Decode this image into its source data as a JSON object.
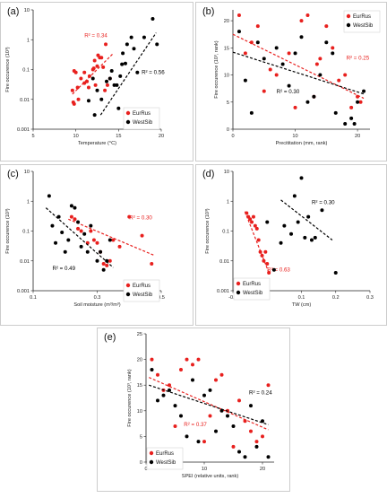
{
  "colors": {
    "EurRus": "#e8201e",
    "WestSib": "#000000"
  },
  "chart_data": [
    {
      "panel": "(a)",
      "type": "scatter",
      "xlabel": "Temperature (°C)",
      "ylabel": "Fire occurence (10³)",
      "xscale": "linear",
      "yscale": "log",
      "xlim": [
        5,
        20
      ],
      "ylim": [
        0.001,
        10
      ],
      "xticks": [
        "5",
        "10",
        "15",
        "20"
      ],
      "yticks": [
        "0.001",
        "0.01",
        "0.1",
        "1",
        "10"
      ],
      "legend": {
        "position": "bottom-right",
        "entries": [
          "EurRus",
          "WestSib"
        ]
      },
      "series": [
        {
          "name": "EurRus",
          "color": "#e8201e",
          "points": [
            [
              9.6,
              0.02
            ],
            [
              9.7,
              0.008
            ],
            [
              9.8,
              0.007
            ],
            [
              9.8,
              0.09
            ],
            [
              10,
              0.08
            ],
            [
              10.2,
              0.025
            ],
            [
              10.3,
              0.01
            ],
            [
              10.6,
              0.05
            ],
            [
              11,
              0.035
            ],
            [
              11,
              0.08
            ],
            [
              11.3,
              0.04
            ],
            [
              11.5,
              0.025
            ],
            [
              11.6,
              0.06
            ],
            [
              12,
              0.1
            ],
            [
              12.1,
              0.11
            ],
            [
              12.2,
              0.2
            ],
            [
              12.3,
              0.03
            ],
            [
              12.5,
              0.13
            ],
            [
              12.6,
              0.3
            ],
            [
              12.8,
              0.25
            ],
            [
              13,
              0.25
            ],
            [
              13.2,
              0.12
            ],
            [
              13.4,
              0.02
            ],
            [
              13.5,
              0.7
            ],
            [
              13.7,
              0.03
            ],
            [
              14,
              0.05
            ]
          ],
          "fit": [
            [
              9.6,
              0.015
            ],
            [
              14.3,
              0.33
            ]
          ],
          "r2_label": "R² = 0.34"
        },
        {
          "name": "WestSib",
          "color": "#000000",
          "points": [
            [
              11.5,
              0.009
            ],
            [
              12,
              0.05
            ],
            [
              12.2,
              0.003
            ],
            [
              12.5,
              0.02
            ],
            [
              13,
              0.01
            ],
            [
              13.6,
              0.04
            ],
            [
              14,
              0.05
            ],
            [
              14.2,
              0.09
            ],
            [
              14.5,
              0.03
            ],
            [
              14.8,
              0.03
            ],
            [
              15,
              0.005
            ],
            [
              15.2,
              0.06
            ],
            [
              15.4,
              0.15
            ],
            [
              15.5,
              0.35
            ],
            [
              15.8,
              0.16
            ],
            [
              16,
              0.7
            ],
            [
              16.5,
              1.2
            ],
            [
              16.8,
              0.5
            ],
            [
              17.2,
              0.08
            ],
            [
              17.5,
              0.003
            ],
            [
              18,
              1.2
            ],
            [
              19,
              5
            ],
            [
              19.5,
              0.7
            ]
          ],
          "fit": [
            [
              12.9,
              0.003
            ],
            [
              19.4,
              1.7
            ]
          ],
          "r2_label": "R² = 0.56"
        }
      ]
    },
    {
      "panel": "(b)",
      "type": "scatter",
      "xlabel": "Precititation (mm, rank)",
      "ylabel": "Fire occurence (10³, rank)",
      "xscale": "linear",
      "yscale": "linear",
      "xlim": [
        0,
        22
      ],
      "ylim": [
        0,
        22
      ],
      "xticks": [
        "0",
        "10",
        "20"
      ],
      "yticks": [
        "0",
        "5",
        "10",
        "15",
        "20"
      ],
      "legend": {
        "position": "top-right",
        "entries": [
          "EurRus",
          "WestSib"
        ]
      },
      "series": [
        {
          "name": "EurRus",
          "color": "#e8201e",
          "points": [
            [
              1,
              21
            ],
            [
              2,
              14
            ],
            [
              3,
              16
            ],
            [
              4,
              19
            ],
            [
              5,
              7
            ],
            [
              6,
              11
            ],
            [
              7,
              10
            ],
            [
              9,
              14
            ],
            [
              10,
              4
            ],
            [
              11,
              20
            ],
            [
              12,
              21
            ],
            [
              13,
              6
            ],
            [
              13.5,
              12
            ],
            [
              14,
              13
            ],
            [
              15,
              19
            ],
            [
              16,
              15
            ],
            [
              17,
              9
            ],
            [
              18,
              10
            ],
            [
              19,
              4
            ],
            [
              20,
              6
            ],
            [
              20.5,
              5
            ]
          ],
          "fit": [
            [
              0,
              17.5
            ],
            [
              21,
              5.7
            ]
          ],
          "r2_label": "R² = 0.25"
        },
        {
          "name": "WestSib",
          "color": "#000000",
          "points": [
            [
              1,
              18
            ],
            [
              2,
              9
            ],
            [
              3,
              3
            ],
            [
              4,
              16
            ],
            [
              5,
              13
            ],
            [
              7,
              15
            ],
            [
              8,
              12
            ],
            [
              9,
              8
            ],
            [
              10,
              14
            ],
            [
              11,
              17
            ],
            [
              12,
              5
            ],
            [
              13,
              6
            ],
            [
              14,
              10
            ],
            [
              15,
              16
            ],
            [
              16,
              14
            ],
            [
              16.5,
              3
            ],
            [
              18,
              1
            ],
            [
              19,
              2
            ],
            [
              19.5,
              1
            ],
            [
              20,
              5
            ],
            [
              21,
              7
            ]
          ],
          "fit": [
            [
              0,
              14.2
            ],
            [
              21,
              6.5
            ]
          ],
          "r2_label": "R² = 0.30"
        }
      ]
    },
    {
      "panel": "(c)",
      "type": "scatter",
      "xlabel": "Soil moisture (m³/m³)",
      "ylabel": "Fire occurence (10³)",
      "xscale": "linear",
      "yscale": "log",
      "xlim": [
        0.1,
        0.5
      ],
      "ylim": [
        0.001,
        10
      ],
      "xticks": [
        "0.1",
        "0.3",
        "0.5"
      ],
      "yticks": [
        "0.001",
        "0.01",
        "0.1",
        "1",
        "10"
      ],
      "legend": {
        "position": "bottom-right",
        "entries": [
          "EurRus",
          "WestSib"
        ]
      },
      "series": [
        {
          "name": "EurRus",
          "color": "#e8201e",
          "points": [
            [
              0.22,
              0.3
            ],
            [
              0.23,
              0.25
            ],
            [
              0.24,
              0.12
            ],
            [
              0.25,
              0.1
            ],
            [
              0.27,
              0.04
            ],
            [
              0.28,
              0.1
            ],
            [
              0.29,
              0.05
            ],
            [
              0.3,
              0.04
            ],
            [
              0.31,
              0.02
            ],
            [
              0.32,
              0.008
            ],
            [
              0.33,
              0.007
            ],
            [
              0.34,
              0.01
            ],
            [
              0.35,
              0.05
            ],
            [
              0.37,
              0.03
            ],
            [
              0.4,
              0.3
            ],
            [
              0.44,
              0.07
            ],
            [
              0.47,
              0.008
            ]
          ],
          "fit": [
            [
              0.21,
              0.25
            ],
            [
              0.48,
              0.015
            ]
          ],
          "r2_label": "R² = 0.30"
        },
        {
          "name": "WestSib",
          "color": "#000000",
          "points": [
            [
              0.15,
              1.5
            ],
            [
              0.16,
              0.15
            ],
            [
              0.17,
              0.04
            ],
            [
              0.18,
              0.3
            ],
            [
              0.19,
              0.09
            ],
            [
              0.2,
              0.02
            ],
            [
              0.21,
              0.05
            ],
            [
              0.22,
              0.7
            ],
            [
              0.23,
              0.6
            ],
            [
              0.24,
              0.2
            ],
            [
              0.25,
              0.03
            ],
            [
              0.26,
              0.08
            ],
            [
              0.27,
              0.02
            ],
            [
              0.28,
              0.15
            ],
            [
              0.3,
              0.01
            ],
            [
              0.31,
              0.02
            ],
            [
              0.32,
              0.005
            ],
            [
              0.33,
              0.01
            ],
            [
              0.34,
              0.05
            ]
          ],
          "fit": [
            [
              0.14,
              0.6
            ],
            [
              0.35,
              0.006
            ]
          ],
          "r2_label": "R² = 0.49"
        }
      ]
    },
    {
      "panel": "(d)",
      "type": "scatter",
      "xlabel": "TW (cm)",
      "ylabel": "Fire occurence (10³)",
      "xscale": "linear",
      "yscale": "log",
      "xlim": [
        -0.1,
        0.3
      ],
      "ylim": [
        0.001,
        10
      ],
      "xticks": [
        "-0.1",
        "0",
        "0.1",
        "0.2",
        "0.3"
      ],
      "yticks": [
        "0.001",
        "0.01",
        "0.1",
        "1",
        "10"
      ],
      "legend": {
        "position": "bottom-left",
        "entries": [
          "EurRus",
          "WestSib"
        ]
      },
      "series": [
        {
          "name": "EurRus",
          "color": "#e8201e",
          "points": [
            [
              -0.06,
              0.4
            ],
            [
              -0.055,
              0.3
            ],
            [
              -0.05,
              0.25
            ],
            [
              -0.045,
              0.2
            ],
            [
              -0.04,
              0.3
            ],
            [
              -0.035,
              0.15
            ],
            [
              -0.03,
              0.12
            ],
            [
              -0.025,
              0.05
            ],
            [
              -0.02,
              0.02
            ],
            [
              -0.015,
              0.015
            ],
            [
              -0.01,
              0.01
            ],
            [
              -0.005,
              0.02
            ],
            [
              0,
              0.008
            ],
            [
              0.005,
              0.004
            ]
          ],
          "fit": [
            [
              -0.065,
              0.45
            ],
            [
              0.005,
              0.004
            ]
          ],
          "r2_label": "R² = 0.63"
        },
        {
          "name": "WestSib",
          "color": "#000000",
          "points": [
            [
              0.0,
              0.2
            ],
            [
              0.02,
              0.005
            ],
            [
              0.04,
              0.04
            ],
            [
              0.05,
              0.15
            ],
            [
              0.07,
              0.08
            ],
            [
              0.08,
              1.5
            ],
            [
              0.09,
              0.2
            ],
            [
              0.1,
              6
            ],
            [
              0.11,
              0.06
            ],
            [
              0.12,
              0.3
            ],
            [
              0.13,
              0.05
            ],
            [
              0.14,
              0.06
            ],
            [
              0.16,
              0.5
            ],
            [
              0.2,
              0.004
            ]
          ],
          "fit": [
            [
              0.04,
              1.1
            ],
            [
              0.19,
              0.05
            ]
          ],
          "r2_label": "R² = 0.30"
        }
      ]
    },
    {
      "panel": "(e)",
      "type": "scatter",
      "xlabel": "SPEI (relative units, rank)",
      "ylabel": "Fire occurence (10³, rank)",
      "xscale": "linear",
      "yscale": "linear",
      "xlim": [
        0,
        22
      ],
      "ylim": [
        0,
        25
      ],
      "xticks": [
        "0",
        "10",
        "20"
      ],
      "yticks": [
        "0",
        "5",
        "10",
        "15",
        "20",
        "25"
      ],
      "legend": {
        "position": "bottom-left",
        "entries": [
          "EurRus",
          "WestSib"
        ]
      },
      "series": [
        {
          "name": "EurRus",
          "color": "#e8201e",
          "points": [
            [
              1,
              20
            ],
            [
              2,
              17
            ],
            [
              3,
              14
            ],
            [
              4,
              15
            ],
            [
              5,
              7
            ],
            [
              6,
              18
            ],
            [
              7,
              20
            ],
            [
              8,
              19
            ],
            [
              9,
              20
            ],
            [
              10,
              4
            ],
            [
              11,
              9
            ],
            [
              12,
              16
            ],
            [
              13,
              17
            ],
            [
              14,
              10
            ],
            [
              15,
              3
            ],
            [
              16,
              12
            ],
            [
              17,
              8
            ],
            [
              18,
              6
            ],
            [
              19,
              4
            ],
            [
              20,
              5
            ],
            [
              21,
              15
            ]
          ],
          "fit": [
            [
              0.5,
              16.5
            ],
            [
              21,
              6.3
            ]
          ],
          "r2_label": "R² = 0.37"
        },
        {
          "name": "WestSib",
          "color": "#000000",
          "points": [
            [
              1,
              18
            ],
            [
              2,
              12
            ],
            [
              3,
              13
            ],
            [
              4,
              14
            ],
            [
              5,
              11
            ],
            [
              6,
              9
            ],
            [
              7,
              5
            ],
            [
              8,
              16
            ],
            [
              9,
              4
            ],
            [
              10,
              13
            ],
            [
              11,
              14
            ],
            [
              12,
              6
            ],
            [
              13,
              10
            ],
            [
              14,
              9
            ],
            [
              15,
              7
            ],
            [
              16,
              2
            ],
            [
              17,
              1
            ],
            [
              18,
              11
            ],
            [
              19,
              3
            ],
            [
              20,
              8
            ],
            [
              21,
              1
            ]
          ],
          "fit": [
            [
              0.5,
              15
            ],
            [
              21,
              7.3
            ]
          ],
          "r2_label": "R² = 0.24"
        }
      ]
    }
  ]
}
